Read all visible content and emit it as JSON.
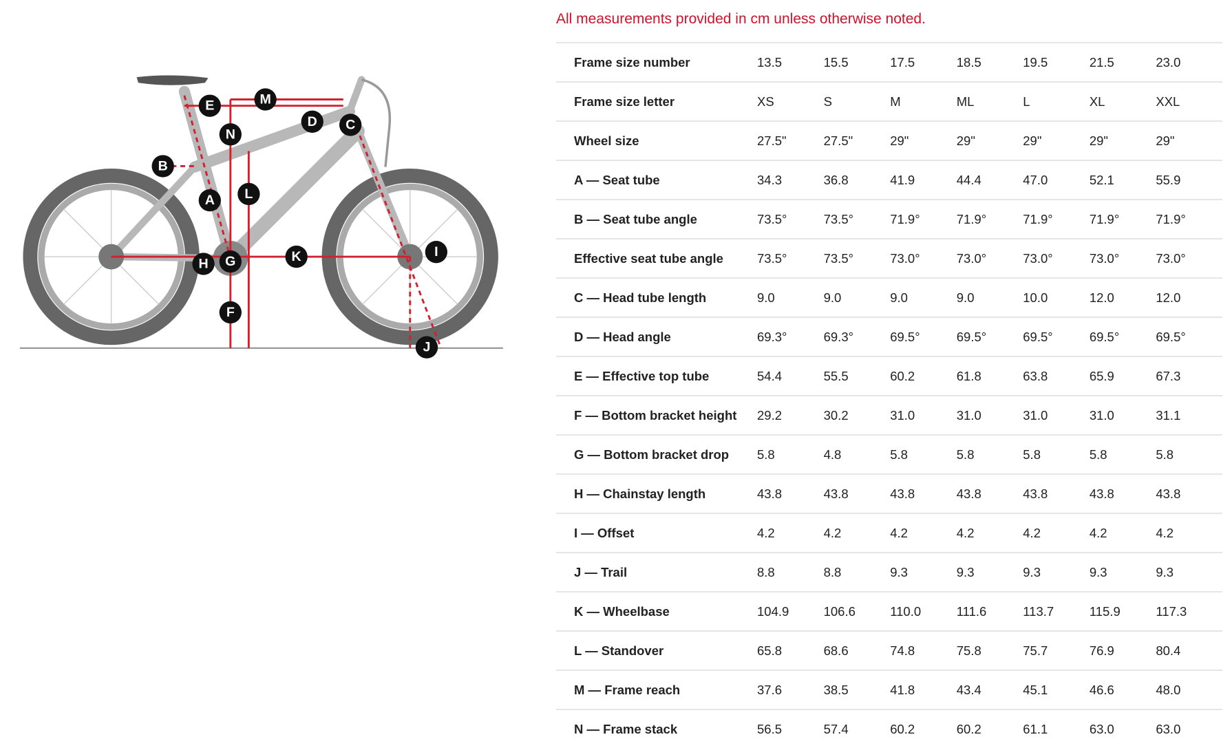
{
  "note": "All measurements provided in cm unless otherwise noted.",
  "diagram": {
    "labels": [
      "A",
      "B",
      "C",
      "D",
      "E",
      "F",
      "G",
      "H",
      "I",
      "J",
      "K",
      "L",
      "M",
      "N"
    ]
  },
  "table": {
    "rows": [
      [
        "Frame size number",
        "13.5",
        "15.5",
        "17.5",
        "18.5",
        "19.5",
        "21.5",
        "23.0"
      ],
      [
        "Frame size letter",
        "XS",
        "S",
        "M",
        "ML",
        "L",
        "XL",
        "XXL"
      ],
      [
        "Wheel size",
        "27.5\"",
        "27.5\"",
        "29\"",
        "29\"",
        "29\"",
        "29\"",
        "29\""
      ],
      [
        "A — Seat tube",
        "34.3",
        "36.8",
        "41.9",
        "44.4",
        "47.0",
        "52.1",
        "55.9"
      ],
      [
        "B — Seat tube angle",
        "73.5°",
        "73.5°",
        "71.9°",
        "71.9°",
        "71.9°",
        "71.9°",
        "71.9°"
      ],
      [
        "Effective seat tube angle",
        "73.5°",
        "73.5°",
        "73.0°",
        "73.0°",
        "73.0°",
        "73.0°",
        "73.0°"
      ],
      [
        "C — Head tube length",
        "9.0",
        "9.0",
        "9.0",
        "9.0",
        "10.0",
        "12.0",
        "12.0"
      ],
      [
        "D — Head angle",
        "69.3°",
        "69.3°",
        "69.5°",
        "69.5°",
        "69.5°",
        "69.5°",
        "69.5°"
      ],
      [
        "E — Effective top tube",
        "54.4",
        "55.5",
        "60.2",
        "61.8",
        "63.8",
        "65.9",
        "67.3"
      ],
      [
        "F — Bottom bracket height",
        "29.2",
        "30.2",
        "31.0",
        "31.0",
        "31.0",
        "31.0",
        "31.1"
      ],
      [
        "G — Bottom bracket drop",
        "5.8",
        "4.8",
        "5.8",
        "5.8",
        "5.8",
        "5.8",
        "5.8"
      ],
      [
        "H — Chainstay length",
        "43.8",
        "43.8",
        "43.8",
        "43.8",
        "43.8",
        "43.8",
        "43.8"
      ],
      [
        "I — Offset",
        "4.2",
        "4.2",
        "4.2",
        "4.2",
        "4.2",
        "4.2",
        "4.2"
      ],
      [
        "J — Trail",
        "8.8",
        "8.8",
        "9.3",
        "9.3",
        "9.3",
        "9.3",
        "9.3"
      ],
      [
        "K — Wheelbase",
        "104.9",
        "106.6",
        "110.0",
        "111.6",
        "113.7",
        "115.9",
        "117.3"
      ],
      [
        "L — Standover",
        "65.8",
        "68.6",
        "74.8",
        "75.8",
        "75.7",
        "76.9",
        "80.4"
      ],
      [
        "M — Frame reach",
        "37.6",
        "38.5",
        "41.8",
        "43.4",
        "45.1",
        "46.6",
        "48.0"
      ],
      [
        "N — Frame stack",
        "56.5",
        "57.4",
        "60.2",
        "60.2",
        "61.1",
        "63.0",
        "63.0"
      ]
    ]
  }
}
